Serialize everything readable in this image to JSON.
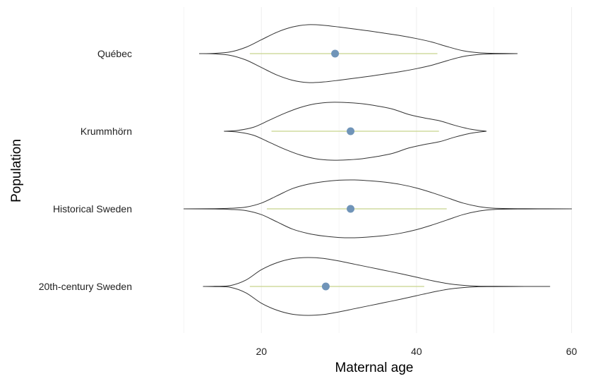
{
  "chart_data": {
    "type": "violin",
    "orientation": "horizontal",
    "xlabel": "Maternal age",
    "ylabel": "Population",
    "xlim": [
      7.5,
      61.5
    ],
    "x_ticks": [
      20,
      40,
      60
    ],
    "grid": true,
    "colors": {
      "violin_outline": "#333333",
      "interval_line": "#c8d48c",
      "point": "#7094b8",
      "grid": "#eeeeee"
    },
    "categories": [
      "Québec",
      "Krummhörn",
      "Historical Sweden",
      "20th-century Sweden"
    ],
    "series": [
      {
        "category": "Québec",
        "point": 29.5,
        "interval": [
          18.5,
          42.7
        ],
        "density_profile": {
          "x": [
            12,
            14,
            16,
            18,
            20,
            22,
            24,
            26,
            28,
            30,
            32,
            34,
            36,
            38,
            40,
            42,
            44,
            46,
            48,
            50,
            53
          ],
          "half_width": [
            0.0,
            0.01,
            0.06,
            0.22,
            0.48,
            0.74,
            0.92,
            1.0,
            0.98,
            0.92,
            0.85,
            0.78,
            0.7,
            0.62,
            0.52,
            0.4,
            0.24,
            0.1,
            0.03,
            0.01,
            0.0
          ]
        }
      },
      {
        "category": "Krummhörn",
        "point": 31.5,
        "interval": [
          21.3,
          42.9
        ],
        "density_profile": {
          "x": [
            15.2,
            17,
            19,
            21,
            23,
            25,
            27,
            29,
            31,
            33,
            35,
            37,
            39,
            41,
            43,
            45,
            47,
            49
          ],
          "half_width": [
            0.0,
            0.03,
            0.14,
            0.38,
            0.62,
            0.82,
            0.95,
            1.0,
            0.99,
            0.95,
            0.87,
            0.76,
            0.58,
            0.46,
            0.36,
            0.2,
            0.07,
            0.0
          ]
        }
      },
      {
        "category": "Historical Sweden",
        "point": 31.5,
        "interval": [
          20.7,
          43.9
        ],
        "density_profile": {
          "x": [
            10,
            14,
            16,
            18,
            20,
            22,
            24,
            26,
            28,
            30,
            32,
            34,
            36,
            38,
            40,
            42,
            44,
            46,
            48,
            50,
            54,
            60
          ],
          "half_width": [
            0.0,
            0.005,
            0.02,
            0.06,
            0.2,
            0.45,
            0.7,
            0.85,
            0.94,
            0.99,
            1.0,
            0.97,
            0.92,
            0.84,
            0.72,
            0.56,
            0.38,
            0.2,
            0.08,
            0.02,
            0.005,
            0.0
          ]
        }
      },
      {
        "category": "20th-century Sweden",
        "point": 28.3,
        "interval": [
          18.5,
          41.0
        ],
        "density_profile": {
          "x": [
            12.5,
            14,
            16,
            18,
            20,
            22,
            24,
            26,
            28,
            30,
            32,
            34,
            36,
            38,
            40,
            42,
            44,
            46,
            48,
            50,
            54,
            57.2
          ],
          "half_width": [
            0.0,
            0.005,
            0.03,
            0.22,
            0.58,
            0.82,
            0.96,
            1.0,
            0.97,
            0.88,
            0.77,
            0.66,
            0.55,
            0.44,
            0.32,
            0.2,
            0.1,
            0.04,
            0.01,
            0.005,
            0.001,
            0.0
          ]
        }
      }
    ]
  }
}
